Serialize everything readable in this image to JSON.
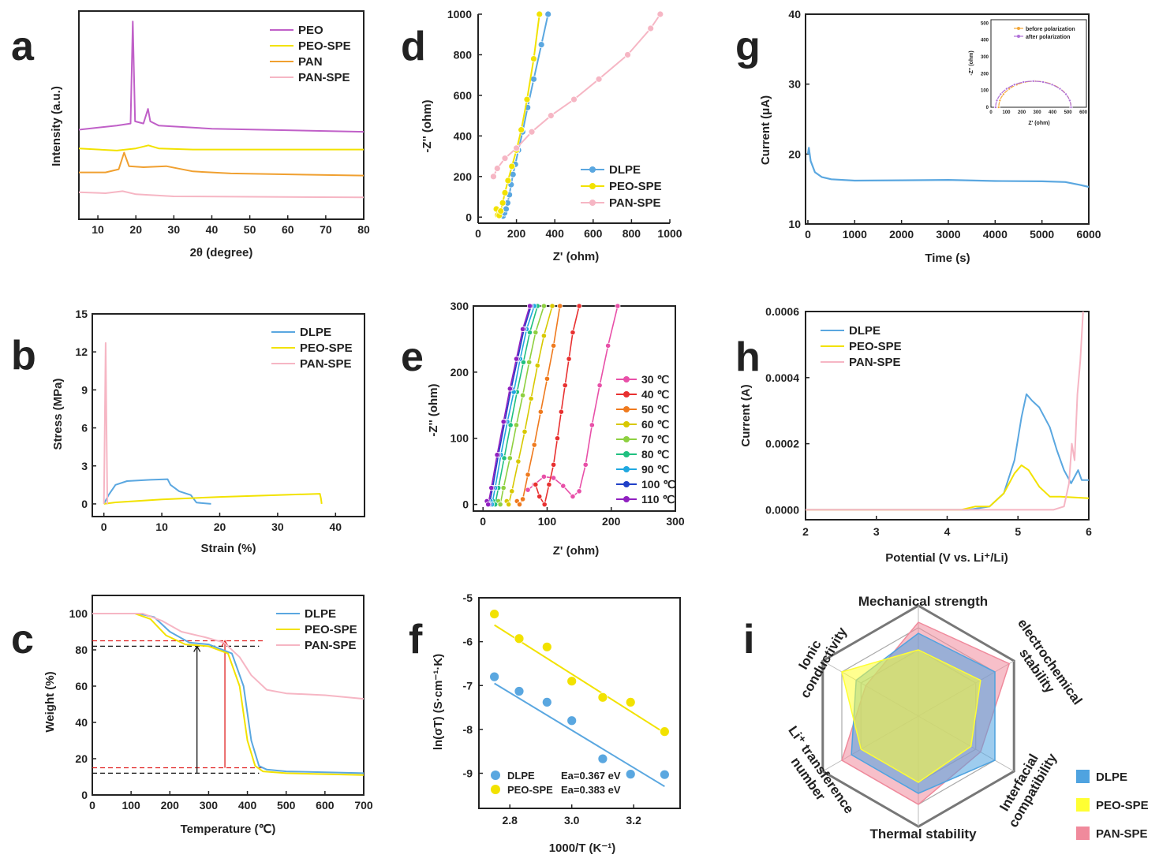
{
  "figure": {
    "colors": {
      "PEO": "#c060c8",
      "PEO-SPE": "#f2e200",
      "PAN": "#f0a030",
      "PAN-SPE": "#f6b6c4",
      "DLPE": "#5aa7e0",
      "axis": "#222222",
      "T30": "#e850a8",
      "T40": "#e83030",
      "T50": "#ef7a1e",
      "T60": "#d8c800",
      "T70": "#8ed040",
      "T80": "#20c080",
      "T90": "#20a8e0",
      "T100": "#2040c8",
      "T110": "#9020c0",
      "black_dash": "#111111",
      "red_dash": "#e02020",
      "radar_DLPE": "#4fa3e0",
      "radar_PEO": "#ffff33",
      "radar_PAN": "#f08a9c"
    }
  },
  "chart_data": [
    {
      "panel": "a",
      "type": "line",
      "xlabel": "2θ (degree)",
      "ylabel": "Intensity (a.u.)",
      "xlim": [
        5,
        80
      ],
      "xticks": [
        "10",
        "20",
        "30",
        "40",
        "50",
        "60",
        "70",
        "80"
      ],
      "legend": [
        "PEO",
        "PEO-SPE",
        "PAN",
        "PAN-SPE"
      ],
      "series": [
        {
          "name": "PEO",
          "x": [
            5,
            15,
            18.6,
            19.2,
            19.8,
            22,
            23.2,
            23.8,
            26,
            40,
            80
          ],
          "y": [
            4.3,
            4.5,
            4.6,
            9.5,
            4.7,
            4.6,
            5.3,
            4.7,
            4.5,
            4.35,
            4.2
          ]
        },
        {
          "name": "PEO-SPE",
          "x": [
            5,
            15,
            20,
            23.3,
            26,
            35,
            80
          ],
          "y": [
            3.4,
            3.3,
            3.4,
            3.55,
            3.4,
            3.35,
            3.35
          ]
        },
        {
          "name": "PAN",
          "x": [
            5,
            12,
            15.5,
            16.9,
            18.2,
            22,
            28,
            35,
            45,
            80
          ],
          "y": [
            2.25,
            2.25,
            2.4,
            3.2,
            2.55,
            2.5,
            2.55,
            2.3,
            2.2,
            2.1
          ]
        },
        {
          "name": "PAN-SPE",
          "x": [
            5,
            12,
            16.5,
            20,
            30,
            80
          ],
          "y": [
            1.3,
            1.25,
            1.35,
            1.2,
            1.1,
            1.05
          ]
        }
      ]
    },
    {
      "panel": "b",
      "type": "line",
      "xlabel": "Strain (%)",
      "ylabel": "Stress (MPa)",
      "xlim": [
        -2,
        45
      ],
      "ylim": [
        -1,
        15
      ],
      "xticks": [
        "0",
        "10",
        "20",
        "30",
        "40"
      ],
      "yticks": [
        "0",
        "3",
        "6",
        "9",
        "12",
        "15"
      ],
      "legend": [
        "DLPE",
        "PEO-SPE",
        "PAN-SPE"
      ],
      "series": [
        {
          "name": "DLPE",
          "x": [
            0,
            0.8,
            2,
            4,
            8,
            11,
            11.5,
            13,
            15,
            16,
            18.5
          ],
          "y": [
            0,
            0.7,
            1.5,
            1.8,
            1.9,
            1.95,
            1.5,
            1,
            0.7,
            0.1,
            0
          ]
        },
        {
          "name": "PEO-SPE",
          "x": [
            0,
            2,
            10,
            20,
            30,
            37.3,
            37.5,
            37.6
          ],
          "y": [
            0,
            0.12,
            0.35,
            0.55,
            0.7,
            0.8,
            0.4,
            0
          ]
        },
        {
          "name": "PAN-SPE",
          "x": [
            0,
            0.15,
            0.3,
            0.45,
            0.6
          ],
          "y": [
            0,
            6,
            12.7,
            6,
            0
          ]
        }
      ]
    },
    {
      "panel": "c",
      "type": "line",
      "xlabel": "Temperature (℃)",
      "ylabel": "Weight (%)",
      "xlim": [
        0,
        700
      ],
      "ylim": [
        0,
        110
      ],
      "xticks": [
        "0",
        "100",
        "200",
        "300",
        "400",
        "500",
        "600",
        "700"
      ],
      "yticks": [
        "0",
        "20",
        "40",
        "60",
        "80",
        "100"
      ],
      "legend": [
        "DLPE",
        "PEO-SPE",
        "PAN-SPE"
      ],
      "series": [
        {
          "name": "DLPE",
          "x": [
            0,
            120,
            160,
            200,
            250,
            300,
            360,
            390,
            410,
            430,
            450,
            500,
            700
          ],
          "y": [
            100,
            100,
            98,
            90,
            84,
            83,
            78,
            60,
            30,
            16,
            14,
            13,
            12
          ]
        },
        {
          "name": "PEO-SPE",
          "x": [
            0,
            110,
            150,
            190,
            240,
            300,
            350,
            380,
            400,
            420,
            440,
            500,
            700
          ],
          "y": [
            100,
            100,
            97,
            88,
            83,
            82,
            78,
            60,
            30,
            16,
            13,
            12,
            11
          ]
        },
        {
          "name": "PAN-SPE",
          "x": [
            0,
            130,
            180,
            230,
            290,
            340,
            380,
            410,
            450,
            500,
            600,
            700
          ],
          "y": [
            100,
            100,
            96,
            90,
            87,
            84,
            76,
            66,
            58,
            56,
            55,
            53
          ]
        }
      ],
      "guides": {
        "black_y": [
          82,
          12
        ],
        "red_y": [
          85,
          15
        ],
        "black_x": 270,
        "red_x": 342
      }
    },
    {
      "panel": "d",
      "type": "line",
      "xlabel": "Z' (ohm)",
      "ylabel": "-Z'' (ohm)",
      "xlim": [
        0,
        1000
      ],
      "ylim": [
        -30,
        1000
      ],
      "xticks": [
        "0",
        "200",
        "400",
        "600",
        "800",
        "1000"
      ],
      "yticks": [
        "0",
        "200",
        "400",
        "600",
        "800",
        "1000"
      ],
      "legend": [
        "DLPE",
        "PEO-SPE",
        "PAN-SPE"
      ],
      "series": [
        {
          "name": "DLPE",
          "x": [
            130,
            138,
            146,
            154,
            163,
            172,
            182,
            194,
            210,
            232,
            258,
            290,
            330,
            365
          ],
          "y": [
            5,
            20,
            40,
            70,
            110,
            160,
            210,
            260,
            330,
            420,
            540,
            680,
            850,
            1000
          ]
        },
        {
          "name": "PEO-SPE",
          "x": [
            95,
            102,
            110,
            118,
            128,
            140,
            156,
            176,
            200,
            225,
            255,
            290,
            320
          ],
          "y": [
            40,
            10,
            8,
            30,
            70,
            120,
            180,
            250,
            330,
            430,
            580,
            780,
            1000
          ]
        },
        {
          "name": "PAN-SPE",
          "x": [
            80,
            100,
            140,
            200,
            280,
            380,
            500,
            630,
            780,
            900,
            950
          ],
          "y": [
            200,
            240,
            290,
            340,
            420,
            500,
            580,
            680,
            800,
            930,
            1000
          ]
        }
      ]
    },
    {
      "panel": "e",
      "type": "line",
      "xlabel": "Z' (ohm)",
      "ylabel": "-Z'' (ohm)",
      "xlim": [
        -15,
        300
      ],
      "ylim": [
        -10,
        300
      ],
      "xticks": [
        "0",
        "100",
        "200",
        "300"
      ],
      "yticks": [
        "0",
        "100",
        "200",
        "300"
      ],
      "legend": [
        "30 ℃",
        "40 ℃",
        "50 ℃",
        "60 ℃",
        "70 ℃",
        "80 ℃",
        "90 ℃",
        "100 ℃",
        "110 ℃"
      ],
      "series": [
        {
          "name": "30 ℃",
          "color_key": "T30",
          "x": [
            70,
            80,
            95,
            110,
            125,
            140,
            150,
            160,
            170,
            182,
            195,
            210
          ],
          "y": [
            22,
            30,
            42,
            40,
            28,
            12,
            20,
            60,
            120,
            180,
            240,
            300
          ]
        },
        {
          "name": "40 ℃",
          "color_key": "T40",
          "x": [
            82,
            88,
            96,
            103,
            110,
            116,
            122,
            128,
            134,
            140,
            150
          ],
          "y": [
            30,
            12,
            0,
            30,
            60,
            100,
            140,
            180,
            220,
            260,
            300
          ]
        },
        {
          "name": "50 ℃",
          "color_key": "T50",
          "x": [
            53,
            57,
            62,
            70,
            80,
            90,
            100,
            110,
            120
          ],
          "y": [
            5,
            0,
            8,
            45,
            90,
            140,
            190,
            240,
            300
          ]
        },
        {
          "name": "60 ℃",
          "color_key": "T60",
          "x": [
            37,
            40,
            45,
            55,
            65,
            75,
            85,
            95,
            108
          ],
          "y": [
            5,
            0,
            20,
            65,
            110,
            160,
            210,
            255,
            300
          ]
        },
        {
          "name": "70 ℃",
          "color_key": "T70",
          "x": [
            24,
            27,
            32,
            42,
            52,
            62,
            72,
            82,
            95
          ],
          "y": [
            5,
            0,
            25,
            70,
            120,
            165,
            215,
            260,
            300
          ]
        },
        {
          "name": "80 ℃",
          "color_key": "T80",
          "x": [
            16,
            19,
            24,
            33,
            43,
            53,
            63,
            73,
            85
          ],
          "y": [
            5,
            0,
            25,
            70,
            120,
            170,
            215,
            260,
            300
          ]
        },
        {
          "name": "90 ℃",
          "color_key": "T90",
          "x": [
            12,
            14,
            19,
            28,
            38,
            48,
            58,
            68,
            80
          ],
          "y": [
            5,
            0,
            25,
            75,
            125,
            170,
            220,
            265,
            300
          ]
        },
        {
          "name": "100 ℃",
          "color_key": "T100",
          "x": [
            8,
            10,
            15,
            24,
            34,
            44,
            54,
            64,
            75
          ],
          "y": [
            5,
            0,
            25,
            75,
            125,
            175,
            220,
            265,
            300
          ]
        },
        {
          "name": "110 ℃",
          "color_key": "T110",
          "x": [
            6,
            8,
            13,
            22,
            32,
            42,
            52,
            62,
            73
          ],
          "y": [
            5,
            0,
            25,
            75,
            125,
            175,
            220,
            265,
            300
          ]
        }
      ]
    },
    {
      "panel": "f",
      "type": "scatter",
      "xlabel": "1000/T (K⁻¹)",
      "ylabel": "ln(σT) (S·cm⁻¹·K)",
      "xlim": [
        2.7,
        3.35
      ],
      "ylim": [
        -9.8,
        -5
      ],
      "xticks": [
        "2.8",
        "3.0",
        "3.2"
      ],
      "yticks": [
        "-5",
        "-6",
        "-7",
        "-8",
        "-9"
      ],
      "legend": [
        "DLPE",
        "PEO-SPE"
      ],
      "annotations": [
        "Ea=0.367 eV",
        "Ea=0.383 eV"
      ],
      "series": [
        {
          "name": "DLPE",
          "x": [
            2.75,
            2.83,
            2.92,
            3.0,
            3.1,
            3.19,
            3.3
          ],
          "y": [
            -6.8,
            -7.13,
            -7.38,
            -7.8,
            -8.67,
            -9.02,
            -9.03
          ],
          "fit": [
            [
              2.75,
              -6.95
            ],
            [
              3.3,
              -9.3
            ]
          ]
        },
        {
          "name": "PEO-SPE",
          "x": [
            2.75,
            2.83,
            2.92,
            3.0,
            3.1,
            3.19,
            3.3
          ],
          "y": [
            -5.37,
            -5.93,
            -6.12,
            -6.9,
            -7.27,
            -7.38,
            -8.05
          ],
          "fit": [
            [
              2.75,
              -5.62
            ],
            [
              3.3,
              -8.08
            ]
          ]
        }
      ]
    },
    {
      "panel": "g",
      "type": "line",
      "xlabel": "Time (s)",
      "ylabel": "Current (μA)",
      "xlim": [
        -50,
        6000
      ],
      "ylim": [
        10,
        40
      ],
      "xticks": [
        "0",
        "1000",
        "2000",
        "3000",
        "4000",
        "5000",
        "6000"
      ],
      "yticks": [
        "10",
        "20",
        "30",
        "40"
      ],
      "series": [
        {
          "name": "DLPE",
          "x": [
            0,
            20,
            60,
            150,
            300,
            500,
            1000,
            2000,
            3000,
            4000,
            5000,
            5500,
            5800,
            6000
          ],
          "y": [
            20,
            20.9,
            19,
            17.4,
            16.7,
            16.4,
            16.2,
            16.25,
            16.3,
            16.15,
            16.1,
            16.0,
            15.6,
            15.3
          ]
        }
      ],
      "inset": {
        "xlabel": "Z' (ohm)",
        "ylabel": "-Z'' (ohm)",
        "xlim": [
          0,
          620
        ],
        "ylim": [
          0,
          520
        ],
        "xticks": [
          "0",
          "100",
          "200",
          "300",
          "400",
          "500",
          "600"
        ],
        "yticks": [
          "0",
          "100",
          "200",
          "300",
          "400",
          "500"
        ],
        "legend": [
          "before polarization",
          "after polarization"
        ],
        "series": [
          {
            "name": "before polarization",
            "center": 285,
            "radius": 235,
            "height": 155
          },
          {
            "name": "after polarization",
            "center": 275,
            "radius": 245,
            "height": 155
          }
        ]
      }
    },
    {
      "panel": "h",
      "type": "line",
      "xlabel": "Potential (V vs. Li⁺/Li)",
      "ylabel": "Current (A)",
      "xlim": [
        2,
        6
      ],
      "ylim": [
        -3e-05,
        0.0006
      ],
      "xticks": [
        "2",
        "3",
        "4",
        "5",
        "6"
      ],
      "yticks": [
        "0.0000",
        "0.0002",
        "0.0004",
        "0.0006"
      ],
      "legend": [
        "DLPE",
        "PEO-SPE",
        "PAN-SPE"
      ],
      "series": [
        {
          "name": "DLPE",
          "x": [
            2,
            4.3,
            4.6,
            4.8,
            4.95,
            5.05,
            5.12,
            5.2,
            5.3,
            5.45,
            5.55,
            5.65,
            5.75,
            5.85,
            5.9,
            6.0
          ],
          "y": [
            0,
            0,
            1e-05,
            5e-05,
            0.00015,
            0.00028,
            0.00035,
            0.00033,
            0.00031,
            0.00025,
            0.00018,
            0.00012,
            8e-05,
            0.00012,
            9e-05,
            9e-05
          ]
        },
        {
          "name": "PEO-SPE",
          "x": [
            2,
            4.2,
            4.4,
            4.6,
            4.8,
            4.95,
            5.05,
            5.15,
            5.3,
            5.45,
            5.6,
            6.0
          ],
          "y": [
            0,
            0,
            1e-05,
            1e-05,
            5e-05,
            0.00011,
            0.000135,
            0.00012,
            7e-05,
            4e-05,
            4e-05,
            3.5e-05
          ]
        },
        {
          "name": "PAN-SPE",
          "x": [
            2,
            5.5,
            5.65,
            5.72,
            5.76,
            5.8,
            5.84,
            5.88,
            5.92
          ],
          "y": [
            0,
            0,
            1e-05,
            8e-05,
            0.0002,
            0.00015,
            0.00035,
            0.00045,
            0.0006
          ]
        }
      ]
    },
    {
      "panel": "i",
      "type": "radar",
      "axes": [
        "Mechanical strength",
        "electrochemical stability",
        "Interfacial compatibility",
        "Thermal stability",
        "Li⁺ transference number",
        "Ionic conductivity"
      ],
      "max": 10,
      "legend": [
        "DLPE",
        "PEO-SPE",
        "PAN-SPE"
      ],
      "series": [
        {
          "name": "DLPE",
          "values": [
            7.5,
            8.0,
            8.0,
            7.0,
            7.0,
            6.5
          ]
        },
        {
          "name": "PEO-SPE",
          "values": [
            6.0,
            6.5,
            5.5,
            6.0,
            6.0,
            8.0
          ]
        },
        {
          "name": "PAN-SPE",
          "values": [
            8.5,
            9.5,
            6.5,
            8.0,
            8.0,
            5.5
          ]
        }
      ]
    }
  ]
}
